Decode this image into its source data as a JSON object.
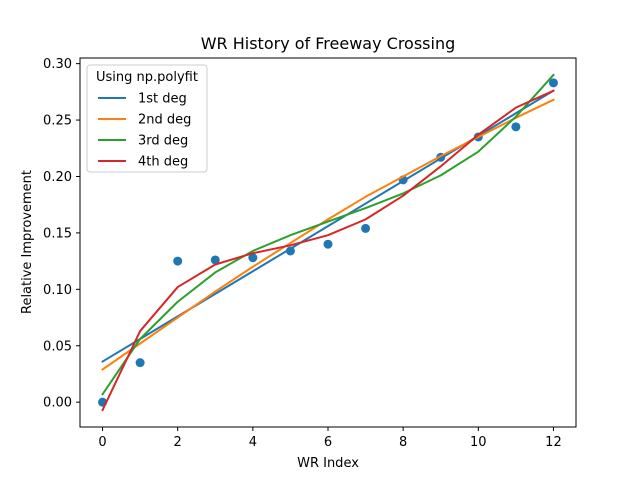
{
  "chart_data": {
    "type": "line",
    "title": "WR History of Freeway Crossing",
    "xlabel": "WR Index",
    "ylabel": "Relative Improvement",
    "xlim": [
      -0.6,
      12.6
    ],
    "ylim": [
      -0.022,
      0.305
    ],
    "x_ticks": [
      0,
      2,
      4,
      6,
      8,
      10,
      12
    ],
    "y_ticks": [
      0.0,
      0.05,
      0.1,
      0.15,
      0.2,
      0.25,
      0.3
    ],
    "x_tick_labels": [
      "0",
      "2",
      "4",
      "6",
      "8",
      "10",
      "12"
    ],
    "y_tick_labels": [
      "0.00",
      "0.05",
      "0.10",
      "0.15",
      "0.20",
      "0.25",
      "0.30"
    ],
    "grid": false,
    "legend": {
      "title": "Using np.polyfit",
      "placement": "top-left"
    },
    "points": {
      "color": "#1f77b4",
      "x": [
        0,
        1,
        2,
        3,
        4,
        5,
        6,
        7,
        8,
        9,
        10,
        11,
        12
      ],
      "y": [
        0.0,
        0.035,
        0.125,
        0.126,
        0.128,
        0.134,
        0.14,
        0.154,
        0.197,
        0.217,
        0.235,
        0.244,
        0.283
      ]
    },
    "series": [
      {
        "name": "1st deg",
        "color": "#1f77b4",
        "x": [
          0,
          1,
          2,
          3,
          4,
          5,
          6,
          7,
          8,
          9,
          10,
          11,
          12
        ],
        "y": [
          0.036,
          0.056,
          0.076,
          0.096,
          0.116,
          0.136,
          0.156,
          0.176,
          0.196,
          0.216,
          0.236,
          0.256,
          0.276
        ]
      },
      {
        "name": "2nd deg",
        "color": "#ff7f0e",
        "x": [
          0,
          1,
          2,
          3,
          4,
          5,
          6,
          7,
          8,
          9,
          10,
          11,
          12
        ],
        "y": [
          0.029,
          0.052,
          0.075,
          0.098,
          0.12,
          0.141,
          0.162,
          0.182,
          0.2,
          0.218,
          0.235,
          0.252,
          0.268
        ]
      },
      {
        "name": "3rd deg",
        "color": "#2ca02c",
        "x": [
          0,
          1,
          2,
          3,
          4,
          5,
          6,
          7,
          8,
          9,
          10,
          11,
          12
        ],
        "y": [
          0.007,
          0.056,
          0.089,
          0.115,
          0.134,
          0.148,
          0.16,
          0.172,
          0.185,
          0.201,
          0.222,
          0.253,
          0.29
        ]
      },
      {
        "name": "4th deg",
        "color": "#d62728",
        "x": [
          0,
          1,
          2,
          3,
          4,
          5,
          6,
          7,
          8,
          9,
          10,
          11,
          12
        ],
        "y": [
          -0.007,
          0.063,
          0.102,
          0.122,
          0.132,
          0.139,
          0.148,
          0.162,
          0.183,
          0.209,
          0.237,
          0.261,
          0.276
        ]
      }
    ]
  }
}
